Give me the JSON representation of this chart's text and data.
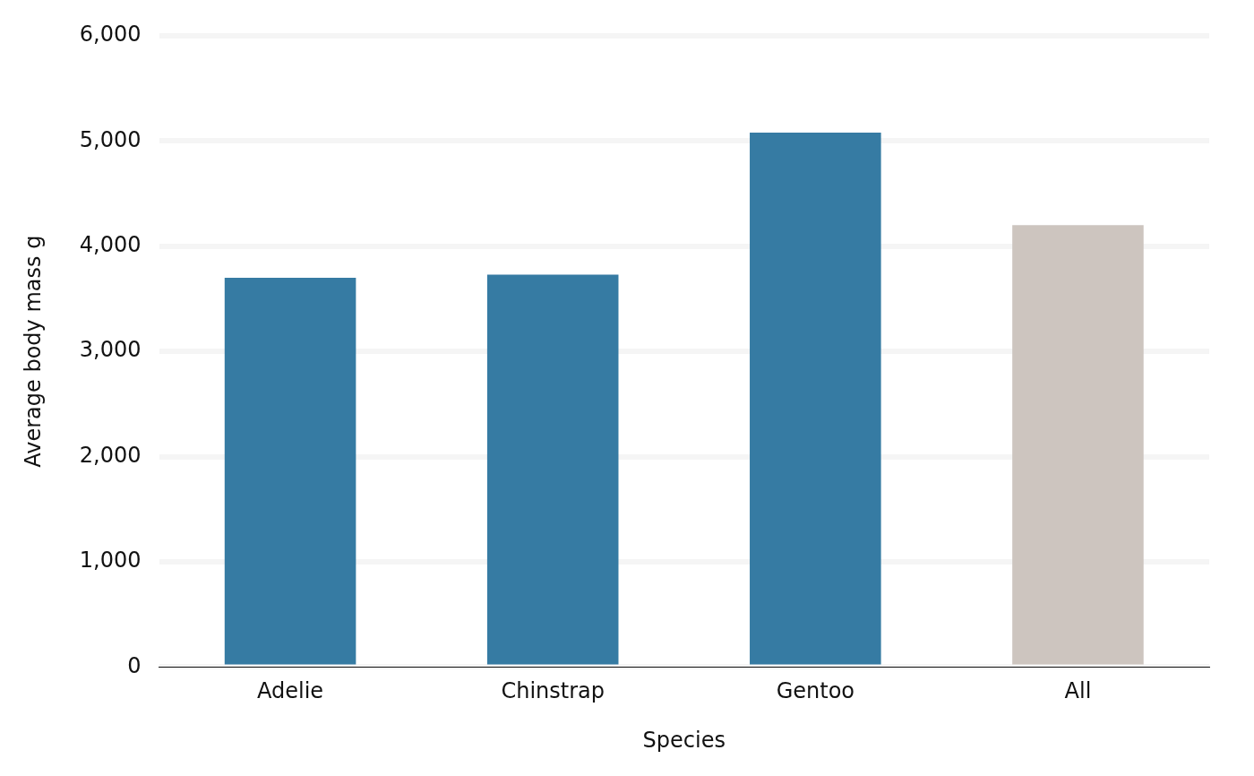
{
  "chart_data": {
    "type": "bar",
    "xlabel": "Species",
    "ylabel": "Average body mass g",
    "categories": [
      "Adelie",
      "Chinstrap",
      "Gentoo",
      "All"
    ],
    "values": [
      3700,
      3730,
      5080,
      4200
    ],
    "colors": [
      "#367ba3",
      "#367ba3",
      "#367ba3",
      "#cdc5bf"
    ],
    "ylim": [
      0,
      6000
    ],
    "yticks": [
      0,
      {
        "value": 1000,
        "label": "1,000"
      },
      {
        "value": 2000,
        "label": "2,000"
      },
      {
        "value": 3000,
        "label": "3,000"
      },
      {
        "value": 4000,
        "label": "4,000"
      },
      {
        "value": 5000,
        "label": "5,000"
      },
      {
        "value": 6000,
        "label": "6,000"
      }
    ],
    "grid": "y",
    "legend": false
  }
}
